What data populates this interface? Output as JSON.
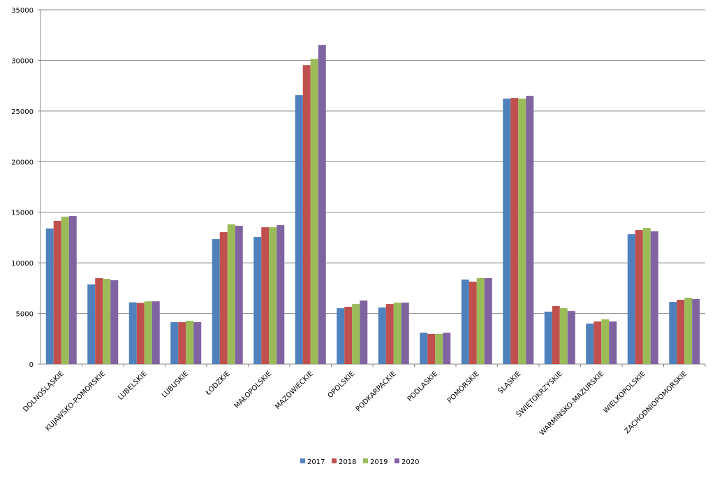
{
  "chart_data": {
    "type": "bar",
    "categories": [
      "DOLNOŚLĄSKIE",
      "KUJAWSKO-POMORSKIE",
      "LUBELSKIE",
      "LUBUSKIE",
      "ŁÓDZKIE",
      "MAŁOPOLSKIE",
      "MAZOWIECKIE",
      "OPOLSKIE",
      "PODKARPACKIE",
      "PODLASKIE",
      "POMORSKIE",
      "ŚLĄSKIE",
      "ŚWIĘTOKRZYSKIE",
      "WARMIŃSKO-MAZURSKIE",
      "WIELKOPOLSKIE",
      "ZACHODNIOPOMORSKIE"
    ],
    "series": [
      {
        "name": "2017",
        "color": "#4f81bd",
        "values": [
          13400,
          7870,
          6100,
          4140,
          12350,
          12560,
          26570,
          5520,
          5590,
          3100,
          8350,
          26220,
          5180,
          4000,
          12830,
          6140
        ]
      },
      {
        "name": "2018",
        "color": "#c0504d",
        "values": [
          14150,
          8490,
          6050,
          4140,
          13040,
          13520,
          29530,
          5660,
          5930,
          2970,
          8140,
          26290,
          5730,
          4210,
          13250,
          6350
        ]
      },
      {
        "name": "2019",
        "color": "#9bbb59",
        "values": [
          14560,
          8420,
          6200,
          4280,
          13800,
          13520,
          30150,
          5930,
          6070,
          2990,
          8490,
          26220,
          5520,
          4420,
          13460,
          6560
        ]
      },
      {
        "name": "2020",
        "color": "#8064a2",
        "values": [
          14630,
          8280,
          6200,
          4140,
          13660,
          13730,
          31530,
          6280,
          6070,
          3100,
          8490,
          26500,
          5240,
          4210,
          13110,
          6420
        ]
      }
    ],
    "ylim": [
      0,
      35000
    ],
    "yticks": [
      0,
      5000,
      10000,
      15000,
      20000,
      25000,
      30000,
      35000
    ],
    "grid": true,
    "legend": "bottom"
  }
}
